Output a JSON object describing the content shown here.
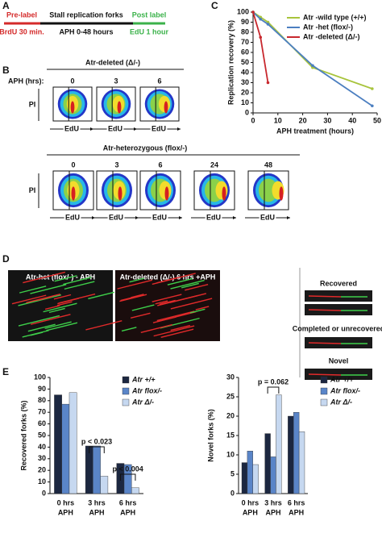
{
  "panels": {
    "a": "A",
    "b": "B",
    "c": "C",
    "d": "D",
    "e": "E"
  },
  "panel_a": {
    "pre_label": "Pre-label",
    "pre_detail": "BrdU 30 min.",
    "stall": "Stall replication forks",
    "stall_detail": "APH 0-48 hours",
    "post_label": "Post label",
    "post_detail": "EdU 1 hour"
  },
  "panel_b": {
    "deleted_title": "Atr-deleted (Δ/-)",
    "aph_label": "APH (hrs):",
    "y_label": "PI",
    "x_label": "EdU",
    "deleted_times": [
      "0",
      "3",
      "6"
    ],
    "het_title": "Atr-heterozygous (flox/-)",
    "het_times": [
      "0",
      "3",
      "6",
      "24",
      "48"
    ]
  },
  "panel_d": {
    "left_title": "Atr-het (flox/-) - APH",
    "middle_title": "Atr-deleted (Δ/-) 6 hrs +APH",
    "recovered": "Recovered",
    "completed": "Completed or unrecovered",
    "novel": "Novel"
  },
  "chart_data": [
    {
      "type": "line",
      "y_label": "Replication recovery (%)",
      "x_label": "APH treatment (hours)",
      "xlim": [
        0,
        50
      ],
      "xticks": [
        0,
        10,
        20,
        30,
        40,
        50
      ],
      "ylim": [
        0,
        100
      ],
      "yticks": [
        0,
        10,
        20,
        30,
        40,
        50,
        60,
        70,
        80,
        90,
        100
      ],
      "series": [
        {
          "name": "Atr -wild type (+/+)",
          "color": "#a8c43c",
          "x": [
            0,
            3,
            6,
            24,
            48
          ],
          "values": [
            100,
            95,
            90,
            45,
            24
          ]
        },
        {
          "name": "Atr -het (flox/-)",
          "color": "#4c7fc0",
          "x": [
            0,
            3,
            6,
            24,
            48
          ],
          "values": [
            100,
            93,
            88,
            47,
            7
          ]
        },
        {
          "name": "Atr -deleted (Δ/-)",
          "color": "#c8282e",
          "x": [
            0,
            3,
            6
          ],
          "values": [
            100,
            75,
            30
          ]
        }
      ]
    },
    {
      "type": "bar",
      "y_label": "Recovered forks (%)",
      "categories": [
        [
          "0 hrs",
          "APH"
        ],
        [
          "3 hrs",
          "APH"
        ],
        [
          "6 hrs",
          "APH"
        ]
      ],
      "ylim": [
        0,
        100
      ],
      "yticks": [
        0,
        10,
        20,
        30,
        40,
        50,
        60,
        70,
        80,
        90,
        100
      ],
      "annotations": [
        "p < 0.023",
        "p < 0.004"
      ],
      "series": [
        {
          "name": "Atr +/+",
          "color": "#1c2740",
          "values": [
            85,
            41,
            26
          ]
        },
        {
          "name": "Atr flox/-",
          "color": "#5a85c8",
          "values": [
            77,
            41,
            25
          ]
        },
        {
          "name": "Atr Δ/-",
          "color": "#c6d8f0",
          "values": [
            87,
            15,
            5
          ]
        }
      ]
    },
    {
      "type": "bar",
      "y_label": "Novel forks (%)",
      "categories": [
        [
          "0 hrs",
          "APH"
        ],
        [
          "3 hrs",
          "APH"
        ],
        [
          "6 hrs",
          "APH"
        ]
      ],
      "ylim": [
        0,
        30
      ],
      "yticks": [
        0,
        5,
        10,
        15,
        20,
        25,
        30
      ],
      "annotations": [
        "p = 0.062"
      ],
      "series": [
        {
          "name": "Atr +/+",
          "color": "#1c2740",
          "values": [
            8,
            15.5,
            20
          ]
        },
        {
          "name": "Atr flox/-",
          "color": "#5a85c8",
          "values": [
            11,
            9.5,
            21
          ]
        },
        {
          "name": "Atr Δ/-",
          "color": "#c6d8f0",
          "values": [
            7.5,
            25.5,
            16
          ]
        }
      ]
    }
  ]
}
